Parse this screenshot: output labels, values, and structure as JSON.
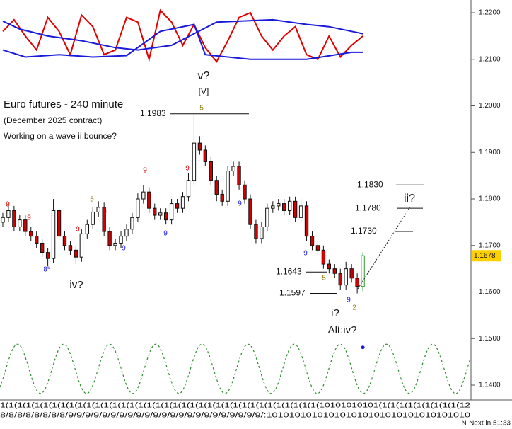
{
  "chart_data": {
    "type": "candlestick",
    "xlim": [
      -0.5,
      83.1
    ],
    "ylim": [
      1.13681,
      1.22274
    ],
    "yticks": [
      {
        "value": 1.22,
        "label": "1.2200"
      },
      {
        "value": 1.21,
        "label": "1.2100"
      },
      {
        "value": 1.2,
        "label": "1.2000"
      },
      {
        "value": 1.19,
        "label": "1.1900"
      },
      {
        "value": 1.18,
        "label": "1.1800"
      },
      {
        "value": 1.17,
        "label": "1.1700"
      },
      {
        "value": 1.16,
        "label": "1.1600"
      },
      {
        "value": 1.15,
        "label": "1.1500"
      },
      {
        "value": 1.14,
        "label": "1.1400"
      }
    ],
    "up_color": "#ffffff",
    "down_color": "#d40000",
    "last_color": "#2a9d2a",
    "open": [
      1.175,
      1.176,
      1.1775,
      1.174,
      1.1755,
      1.173,
      1.172,
      1.1705,
      1.1685,
      1.1672,
      1.1775,
      1.172,
      1.17,
      1.169,
      1.1675,
      1.1725,
      1.1745,
      1.1772,
      1.1782,
      1.173,
      1.17,
      1.1705,
      1.172,
      1.1735,
      1.176,
      1.18,
      1.1815,
      1.178,
      1.1765,
      1.177,
      1.1755,
      1.179,
      1.178,
      1.1805,
      1.184,
      1.192,
      1.1905,
      1.188,
      1.184,
      1.181,
      1.1795,
      1.186,
      1.187,
      1.183,
      1.18,
      1.1745,
      1.1715,
      1.174,
      1.178,
      1.1785,
      1.179,
      1.1775,
      1.1795,
      1.176,
      1.1785,
      1.172,
      1.17,
      1.169,
      1.166,
      1.165,
      1.164,
      1.1615,
      1.165,
      1.163,
      1.1612
    ],
    "high": [
      1.177,
      1.1785,
      1.1785,
      1.1765,
      1.1765,
      1.174,
      1.173,
      1.1715,
      1.1695,
      1.18,
      1.1785,
      1.173,
      1.171,
      1.17,
      1.1735,
      1.1755,
      1.1782,
      1.1795,
      1.1792,
      1.174,
      1.1715,
      1.173,
      1.1745,
      1.177,
      1.1812,
      1.183,
      1.1825,
      1.179,
      1.178,
      1.178,
      1.18,
      1.18,
      1.1815,
      1.1855,
      1.1983,
      1.1935,
      1.1915,
      1.189,
      1.185,
      1.182,
      1.187,
      1.188,
      1.188,
      1.184,
      1.181,
      1.1755,
      1.175,
      1.179,
      1.1795,
      1.18,
      1.18,
      1.1805,
      1.1805,
      1.18,
      1.1795,
      1.173,
      1.171,
      1.17,
      1.167,
      1.166,
      1.165,
      1.1665,
      1.166,
      1.164,
      1.1685
    ],
    "low": [
      1.174,
      1.175,
      1.173,
      1.173,
      1.172,
      1.171,
      1.1695,
      1.1675,
      1.1655,
      1.1662,
      1.171,
      1.169,
      1.168,
      1.166,
      1.1665,
      1.1715,
      1.1735,
      1.1762,
      1.172,
      1.169,
      1.169,
      1.1695,
      1.171,
      1.1725,
      1.175,
      1.179,
      1.177,
      1.1755,
      1.1755,
      1.1745,
      1.1745,
      1.177,
      1.177,
      1.1795,
      1.183,
      1.1895,
      1.187,
      1.183,
      1.1795,
      1.1785,
      1.1785,
      1.185,
      1.182,
      1.179,
      1.1735,
      1.1705,
      1.1705,
      1.173,
      1.177,
      1.1775,
      1.1765,
      1.1765,
      1.175,
      1.175,
      1.171,
      1.169,
      1.168,
      1.165,
      1.164,
      1.163,
      1.1605,
      1.1605,
      1.162,
      1.1597,
      1.1602
    ],
    "close": [
      1.176,
      1.1775,
      1.174,
      1.1755,
      1.173,
      1.172,
      1.1705,
      1.1685,
      1.1672,
      1.1775,
      1.172,
      1.17,
      1.169,
      1.1675,
      1.1725,
      1.1745,
      1.1772,
      1.1782,
      1.173,
      1.17,
      1.1705,
      1.172,
      1.1735,
      1.176,
      1.18,
      1.1815,
      1.178,
      1.1765,
      1.177,
      1.1755,
      1.179,
      1.178,
      1.1805,
      1.184,
      1.192,
      1.1905,
      1.188,
      1.184,
      1.181,
      1.1795,
      1.186,
      1.187,
      1.183,
      1.18,
      1.1745,
      1.1715,
      1.174,
      1.178,
      1.1785,
      1.179,
      1.1775,
      1.1795,
      1.176,
      1.1785,
      1.172,
      1.17,
      1.169,
      1.166,
      1.165,
      1.164,
      1.1615,
      1.165,
      1.163,
      1.1612,
      1.1678
    ],
    "overlays": [
      {
        "color": "#e00000",
        "x": [
          0,
          2,
          4,
          6,
          8,
          10,
          12,
          14,
          16,
          18,
          20,
          22,
          24,
          26,
          28,
          30,
          32,
          34,
          36,
          38,
          40,
          42,
          44,
          46,
          48,
          50,
          52,
          54,
          56,
          58,
          60,
          62,
          64
        ],
        "values": [
          1.216,
          1.2185,
          1.215,
          1.212,
          1.219,
          1.216,
          1.211,
          1.2195,
          1.217,
          1.211,
          1.212,
          1.219,
          1.218,
          1.21,
          1.2205,
          1.218,
          1.213,
          1.2175,
          1.2125,
          1.2095,
          1.214,
          1.219,
          1.22,
          1.215,
          1.212,
          1.215,
          1.217,
          1.211,
          1.21,
          1.215,
          1.2105,
          1.213,
          1.215
        ]
      },
      {
        "color": "#1a1adc",
        "x": [
          0,
          3,
          8,
          14,
          20,
          24,
          30,
          38,
          48,
          54,
          58,
          62,
          64
        ],
        "values": [
          1.2182,
          1.2165,
          1.215,
          1.214,
          1.2125,
          1.212,
          1.213,
          1.218,
          1.2185,
          1.2175,
          1.217,
          1.216,
          1.2155
        ]
      },
      {
        "color": "#1a1adc",
        "x": [
          0,
          4,
          10,
          16,
          22,
          28,
          34,
          36,
          44,
          54,
          62,
          64
        ],
        "values": [
          1.212,
          1.2105,
          1.211,
          1.2105,
          1.2108,
          1.216,
          1.2175,
          1.211,
          1.21,
          1.21,
          1.2115,
          1.2115
        ]
      }
    ],
    "cycle": {
      "color": "#2e8b2e",
      "x": [
        -1.5,
        2.6,
        6.7,
        10.8,
        14.9,
        19.0,
        23.1,
        27.2,
        31.3,
        35.4,
        39.5,
        43.6,
        47.7,
        51.8,
        55.9,
        60.0,
        64.1,
        68.2,
        72.3,
        76.4,
        80.5,
        84.6
      ],
      "values": [
        1.1382,
        1.1488,
        1.1382,
        1.1488,
        1.1382,
        1.1488,
        1.1382,
        1.1488,
        1.1382,
        1.1488,
        1.1382,
        1.1488,
        1.1382,
        1.1488,
        1.1382,
        1.1488,
        1.1382,
        1.1488,
        1.1382,
        1.1488,
        1.1382,
        1.1488
      ]
    },
    "marker": {
      "x": 64,
      "y": 1.1481,
      "color": "#1a1adc"
    },
    "levels": [
      {
        "value": 1.1983,
        "label": "1.1983"
      },
      {
        "value": 1.1643,
        "label": "1.1643"
      },
      {
        "value": 1.1597,
        "label": "1.1597"
      },
      {
        "value": 1.183,
        "label": "1.1830"
      },
      {
        "value": 1.178,
        "label": "1.1780"
      },
      {
        "value": 1.173,
        "label": "1.1730"
      }
    ],
    "last_price": {
      "value": 1.1678,
      "label": "1.1678"
    },
    "annotations": [
      "Euro futures - 240 minute",
      "(December 2025 contract)",
      "Working on a wave ii bounce?",
      "v?",
      "[V]",
      "iv?",
      "i?",
      "Alt:iv?",
      "ii?",
      "9",
      "9",
      "8*",
      "9",
      "5",
      "9",
      "9",
      "9",
      "9",
      "9",
      "5",
      "9",
      "9",
      "5",
      "9",
      "2"
    ],
    "x_axis_line1": "1(1(1(1(1(1(1(1(1(1(1(1(1(1(1(1(1(1(1(1(1(1(1(1(1(1(1(1(1(1(1(1(1(1(1(1(1(10101010101(1(1(1(1(1(1(1(1(1(12",
    "x_axis_line2": "8/8/8/8/8/8/8/8/9/9/9/9/9/9/9/9/9/9/9/9/9/9/9/9/9/9/9/9/9/9/9/:101010101010101010101010101010101010",
    "next_bar": "N-Next in 51:33"
  }
}
